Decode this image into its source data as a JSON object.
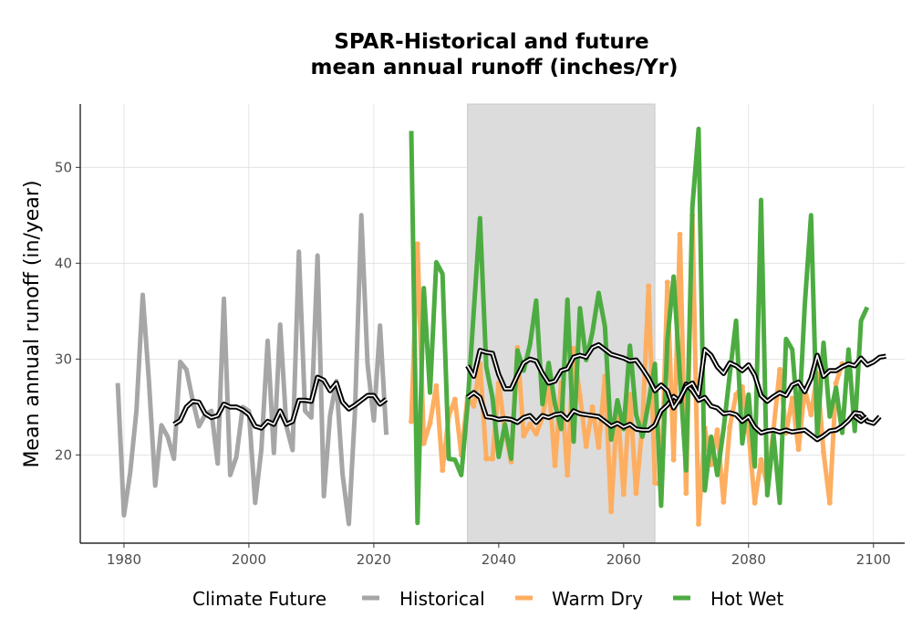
{
  "chart_data": {
    "type": "line",
    "title_line1": "SPAR-Historical and future",
    "title_line2": "mean annual runoff (inches/Yr)",
    "xlabel": "",
    "ylabel": "Mean annual runoff (in/year)",
    "xlim": [
      1973,
      2105
    ],
    "ylim": [
      10.8,
      56.6
    ],
    "x_ticks": [
      1980,
      2000,
      2020,
      2040,
      2060,
      2080,
      2100
    ],
    "y_ticks": [
      20,
      30,
      40,
      50
    ],
    "grid": true,
    "shaded_period": [
      2035,
      2065
    ],
    "legend": {
      "title": "Climate Future",
      "position": "bottom",
      "items": [
        "Historical",
        "Warm Dry",
        "Hot Wet"
      ]
    },
    "colors": {
      "Historical": "#a6a6a6",
      "Warm Dry": "#fdae61",
      "Hot Wet": "#4dac41",
      "smooth": "#000000",
      "shade": "#dcdcdc"
    },
    "series": [
      {
        "name": "Historical",
        "x_start": 1979,
        "values": [
          27.5,
          13.7,
          18.2,
          24.6,
          36.7,
          27.7,
          16.8,
          23.1,
          21.9,
          19.6,
          29.7,
          28.9,
          25.7,
          23.0,
          24.2,
          24.6,
          19.1,
          36.3,
          17.9,
          19.8,
          25.0,
          24.6,
          15.0,
          20.6,
          31.9,
          20.2,
          33.6,
          23.0,
          20.5,
          41.2,
          24.6,
          23.9,
          40.8,
          15.7,
          24.1,
          27.7,
          18.0,
          12.8,
          24.7,
          45.0,
          29.5,
          23.6,
          33.5,
          22.1
        ],
        "smooth_x_start": 1988,
        "smooth": [
          23.2,
          23.6,
          25.0,
          25.6,
          25.5,
          24.3,
          23.9,
          24.1,
          25.3,
          25.0,
          25.0,
          24.7,
          24.2,
          23.0,
          22.8,
          23.5,
          23.2,
          24.6,
          23.2,
          23.5,
          25.7,
          25.7,
          25.6,
          28.1,
          27.8,
          26.7,
          27.5,
          25.5,
          24.8,
          25.2,
          25.7,
          26.2,
          26.2,
          25.3,
          25.8
        ]
      },
      {
        "name": "Warm Dry",
        "x_start": 2026,
        "values": [
          23.5,
          42.0,
          21.2,
          23.3,
          27.2,
          18.4,
          24.1,
          25.8,
          20.0,
          26.0,
          25.1,
          29.5,
          19.6,
          19.6,
          27.5,
          22.5,
          19.3,
          31.2,
          22.0,
          23.2,
          22.2,
          23.9,
          27.6,
          18.9,
          27.5,
          17.9,
          31.1,
          26.2,
          20.9,
          25.0,
          20.8,
          28.2,
          14.1,
          25.3,
          15.9,
          26.3,
          16.0,
          23.1,
          37.6,
          17.1,
          16.9,
          38.0,
          19.5,
          43.0,
          16.0,
          45.0,
          12.8,
          22.8,
          19.0,
          22.6,
          15.1,
          22.9,
          26.3,
          27.1,
          22.3,
          15.0,
          19.5,
          16.8,
          22.7,
          28.9,
          22.3,
          25.9,
          20.6,
          26.9,
          24.2,
          28.5,
          20.3,
          15.0,
          27.5,
          29.5
        ],
        "smooth_x_start": 2035,
        "smooth": [
          26.0,
          26.5,
          26.0,
          24.0,
          23.9,
          23.7,
          23.8,
          23.7,
          23.4,
          23.9,
          24.1,
          23.4,
          24.1,
          23.9,
          24.2,
          24.3,
          23.7,
          24.6,
          24.3,
          24.2,
          24.1,
          24.0,
          23.5,
          23.0,
          23.3,
          22.9,
          23.2,
          22.7,
          22.6,
          22.6,
          23.1,
          24.6,
          25.2,
          26.1,
          25.6,
          27.4,
          26.7,
          25.7,
          26.0,
          25.1,
          24.9,
          24.3,
          24.4,
          24.2,
          23.5,
          24.0,
          22.9,
          22.3,
          22.5,
          22.6,
          22.4,
          22.6,
          22.4,
          22.5,
          22.6,
          22.1,
          21.6,
          22.0,
          22.5,
          22.6,
          23.0,
          23.6,
          24.4,
          24.3,
          23.5,
          23.3,
          24.0
        ],
        "smooth2_x_start": 2097,
        "smooth2": [
          24.0,
          23.5,
          24.0
        ]
      },
      {
        "name": "Hot Wet",
        "x_start": 2026,
        "values": [
          53.8,
          12.9,
          37.4,
          26.5,
          40.1,
          38.9,
          19.6,
          19.5,
          17.9,
          25.1,
          35.0,
          44.7,
          29.2,
          26.0,
          19.8,
          23.2,
          19.6,
          30.9,
          28.8,
          31.5,
          36.1,
          25.3,
          29.6,
          25.3,
          22.7,
          36.2,
          21.4,
          35.3,
          29.9,
          32.8,
          36.9,
          33.4,
          21.6,
          25.7,
          22.7,
          31.4,
          24.2,
          21.9,
          25.5,
          29.5,
          14.7,
          32.0,
          38.6,
          28.3,
          18.4,
          45.9,
          54.0,
          16.3,
          21.9,
          17.9,
          22.7,
          28.4,
          34.0,
          21.2,
          26.3,
          18.8,
          46.6,
          15.8,
          22.1,
          15.0,
          32.1,
          31.0,
          22.8,
          35.6,
          45.0,
          22.0,
          31.7,
          24.0,
          27.0,
          22.3,
          31.0,
          22.5,
          34.0,
          35.4
        ],
        "smooth_x_start": 2035,
        "smooth": [
          29.3,
          28.2,
          30.9,
          30.7,
          30.6,
          28.4,
          26.9,
          26.9,
          28.3,
          29.6,
          30.0,
          29.8,
          28.5,
          27.5,
          27.7,
          28.8,
          29.0,
          30.2,
          30.4,
          30.2,
          31.2,
          31.5,
          31.0,
          30.5,
          30.3,
          30.1,
          29.8,
          29.9,
          29.0,
          28.0,
          26.7,
          27.3,
          26.7,
          24.9,
          25.9,
          27.1,
          27.5,
          26.3,
          31.0,
          30.4,
          29.2,
          28.5,
          29.6,
          29.3,
          28.8,
          29.4,
          28.3,
          26.2,
          25.6,
          26.1,
          26.5,
          26.2,
          27.3,
          27.6,
          26.6,
          28.0,
          30.4,
          28.2,
          28.8,
          28.8,
          29.2,
          29.5,
          29.3,
          30.1,
          29.4,
          29.7,
          30.2,
          30.3
        ]
      }
    ]
  }
}
